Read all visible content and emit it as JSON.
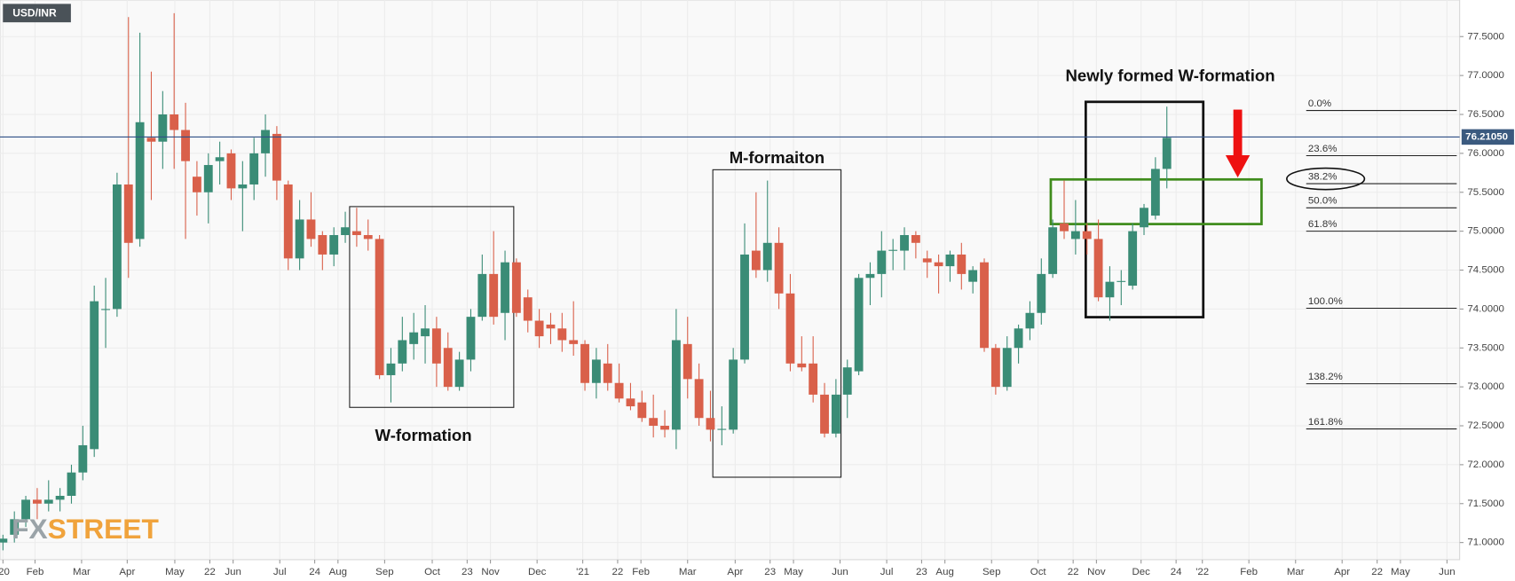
{
  "chart_data": {
    "type": "candlestick",
    "title": "USD/INR",
    "logo": [
      "FX",
      "STREET"
    ],
    "up_color": "#3a8c76",
    "down_color": "#d9604a",
    "ylim": [
      70.78,
      77.97
    ],
    "yticks": [
      {
        "value": 71,
        "label": "71.0000"
      },
      {
        "value": 71.5,
        "label": "71.5000"
      },
      {
        "value": 72,
        "label": "72.0000"
      },
      {
        "value": 72.5,
        "label": "72.5000"
      },
      {
        "value": 73,
        "label": "73.0000"
      },
      {
        "value": 73.5,
        "label": "73.5000"
      },
      {
        "value": 74,
        "label": "74.0000"
      },
      {
        "value": 74.5,
        "label": "74.5000"
      },
      {
        "value": 75,
        "label": "75.0000"
      },
      {
        "value": 75.5,
        "label": "75.5000"
      },
      {
        "value": 76,
        "label": "76.0000"
      },
      {
        "value": 76.5,
        "label": "76.5000"
      },
      {
        "value": 77,
        "label": "77.0000"
      },
      {
        "value": 77.5,
        "label": "77.5000"
      }
    ],
    "xlim": [
      -0.26,
      127.66
    ],
    "xticks": [
      {
        "value": 0,
        "label": "'20"
      },
      {
        "value": 2.81,
        "label": "Feb"
      },
      {
        "value": 6.89,
        "label": "Mar"
      },
      {
        "value": 10.89,
        "label": "Apr"
      },
      {
        "value": 15.06,
        "label": "May"
      },
      {
        "value": 18.13,
        "label": "22"
      },
      {
        "value": 20.17,
        "label": "Jun"
      },
      {
        "value": 24.26,
        "label": "Jul"
      },
      {
        "value": 27.32,
        "label": "24"
      },
      {
        "value": 29.36,
        "label": "Aug"
      },
      {
        "value": 33.45,
        "label": "Sep"
      },
      {
        "value": 37.62,
        "label": "Oct"
      },
      {
        "value": 40.68,
        "label": "23"
      },
      {
        "value": 42.72,
        "label": "Nov"
      },
      {
        "value": 46.81,
        "label": "Dec"
      },
      {
        "value": 50.81,
        "label": "'21"
      },
      {
        "value": 53.87,
        "label": "22"
      },
      {
        "value": 55.91,
        "label": "Feb"
      },
      {
        "value": 60.0,
        "label": "Mar"
      },
      {
        "value": 64.17,
        "label": "Apr"
      },
      {
        "value": 67.23,
        "label": "23"
      },
      {
        "value": 69.28,
        "label": "May"
      },
      {
        "value": 73.36,
        "label": "Jun"
      },
      {
        "value": 77.45,
        "label": "Jul"
      },
      {
        "value": 80.51,
        "label": "23"
      },
      {
        "value": 82.55,
        "label": "Aug"
      },
      {
        "value": 86.64,
        "label": "Sep"
      },
      {
        "value": 90.72,
        "label": "Oct"
      },
      {
        "value": 93.79,
        "label": "22"
      },
      {
        "value": 95.83,
        "label": "Nov"
      },
      {
        "value": 99.74,
        "label": "Dec"
      },
      {
        "value": 102.81,
        "label": "24"
      },
      {
        "value": 105.11,
        "label": "'22"
      },
      {
        "value": 109.19,
        "label": "Feb"
      },
      {
        "value": 113.28,
        "label": "Mar"
      },
      {
        "value": 117.36,
        "label": "Apr"
      },
      {
        "value": 120.43,
        "label": "22"
      },
      {
        "value": 122.47,
        "label": "May"
      },
      {
        "value": 126.55,
        "label": "Jun"
      }
    ],
    "current_price": {
      "value": 76.2105,
      "label": "76.21050"
    },
    "fib_levels": [
      {
        "label": "0.0%",
        "price": 76.55
      },
      {
        "label": "23.6%",
        "price": 75.97
      },
      {
        "label": "38.2%",
        "price": 75.61
      },
      {
        "label": "50.0%",
        "price": 75.3
      },
      {
        "label": "61.8%",
        "price": 75.0
      },
      {
        "label": "100.0%",
        "price": 74.01
      },
      {
        "label": "138.2%",
        "price": 73.04
      },
      {
        "label": "161.8%",
        "price": 72.46
      }
    ],
    "annotations": [
      "W-formation",
      "M-formaiton",
      "Newly formed W-formation"
    ],
    "ohlc": [
      [
        71.0,
        71.1,
        70.9,
        71.05
      ],
      [
        71.1,
        71.4,
        71.0,
        71.3
      ],
      [
        71.3,
        71.6,
        71.2,
        71.55
      ],
      [
        71.55,
        71.7,
        71.3,
        71.5
      ],
      [
        71.5,
        71.8,
        71.4,
        71.55
      ],
      [
        71.55,
        71.7,
        71.4,
        71.6
      ],
      [
        71.6,
        72.0,
        71.5,
        71.9
      ],
      [
        71.9,
        72.5,
        71.8,
        72.25
      ],
      [
        72.2,
        74.3,
        72.1,
        74.1
      ],
      [
        74.0,
        74.4,
        73.5,
        74.0
      ],
      [
        74.0,
        75.75,
        73.9,
        75.6
      ],
      [
        75.6,
        77.75,
        74.4,
        74.85
      ],
      [
        74.9,
        77.55,
        74.8,
        76.4
      ],
      [
        76.2,
        77.05,
        75.4,
        76.15
      ],
      [
        76.15,
        76.8,
        75.8,
        76.5
      ],
      [
        76.5,
        77.8,
        75.8,
        76.3
      ],
      [
        76.3,
        76.65,
        74.9,
        75.9
      ],
      [
        75.7,
        75.9,
        75.2,
        75.5
      ],
      [
        75.5,
        76.0,
        75.1,
        75.85
      ],
      [
        75.9,
        76.15,
        75.6,
        75.95
      ],
      [
        76.0,
        76.05,
        75.4,
        75.55
      ],
      [
        75.55,
        75.9,
        75.0,
        75.6
      ],
      [
        75.6,
        76.2,
        75.4,
        76.0
      ],
      [
        76.0,
        76.5,
        75.7,
        76.3
      ],
      [
        76.25,
        76.35,
        75.4,
        75.65
      ],
      [
        75.6,
        75.65,
        74.5,
        74.65
      ],
      [
        74.65,
        75.4,
        74.5,
        75.15
      ],
      [
        75.15,
        75.5,
        74.8,
        74.9
      ],
      [
        74.95,
        75.0,
        74.5,
        74.7
      ],
      [
        74.7,
        75.05,
        74.55,
        74.95
      ],
      [
        74.95,
        75.25,
        74.85,
        75.05
      ],
      [
        75.0,
        75.3,
        74.8,
        74.95
      ],
      [
        74.95,
        75.15,
        74.75,
        74.9
      ],
      [
        74.9,
        74.95,
        73.1,
        73.15
      ],
      [
        73.15,
        73.5,
        72.8,
        73.3
      ],
      [
        73.3,
        73.9,
        73.2,
        73.6
      ],
      [
        73.55,
        73.95,
        73.35,
        73.7
      ],
      [
        73.65,
        74.05,
        73.3,
        73.75
      ],
      [
        73.75,
        73.9,
        73.0,
        73.3
      ],
      [
        73.5,
        73.7,
        72.95,
        73.0
      ],
      [
        73.0,
        73.45,
        72.95,
        73.35
      ],
      [
        73.35,
        74.0,
        73.2,
        73.9
      ],
      [
        73.9,
        74.7,
        73.85,
        74.45
      ],
      [
        74.45,
        75.0,
        73.8,
        73.9
      ],
      [
        73.95,
        74.75,
        73.6,
        74.6
      ],
      [
        74.6,
        74.65,
        73.9,
        73.95
      ],
      [
        74.15,
        74.25,
        73.7,
        73.85
      ],
      [
        73.85,
        74.0,
        73.5,
        73.65
      ],
      [
        73.8,
        73.95,
        73.55,
        73.75
      ],
      [
        73.75,
        73.95,
        73.45,
        73.6
      ],
      [
        73.6,
        74.1,
        73.4,
        73.55
      ],
      [
        73.55,
        73.6,
        72.95,
        73.05
      ],
      [
        73.05,
        73.5,
        72.85,
        73.35
      ],
      [
        73.3,
        73.55,
        72.95,
        73.05
      ],
      [
        73.05,
        73.3,
        72.8,
        72.85
      ],
      [
        72.85,
        73.05,
        72.7,
        72.75
      ],
      [
        72.8,
        72.95,
        72.55,
        72.6
      ],
      [
        72.6,
        72.9,
        72.35,
        72.5
      ],
      [
        72.5,
        72.7,
        72.35,
        72.45
      ],
      [
        72.45,
        74.0,
        72.2,
        73.6
      ],
      [
        73.55,
        73.9,
        72.85,
        73.1
      ],
      [
        73.1,
        73.3,
        72.5,
        72.6
      ],
      [
        72.6,
        72.95,
        72.3,
        72.45
      ],
      [
        72.45,
        72.75,
        72.25,
        72.46
      ],
      [
        72.45,
        73.5,
        72.4,
        73.35
      ],
      [
        73.35,
        75.1,
        73.3,
        74.7
      ],
      [
        74.75,
        75.5,
        74.4,
        74.5
      ],
      [
        74.5,
        75.65,
        74.35,
        74.85
      ],
      [
        74.85,
        75.05,
        74.0,
        74.2
      ],
      [
        74.2,
        74.45,
        73.2,
        73.3
      ],
      [
        73.3,
        73.65,
        73.2,
        73.25
      ],
      [
        73.3,
        73.65,
        72.8,
        72.9
      ],
      [
        72.9,
        73.05,
        72.35,
        72.4
      ],
      [
        72.4,
        73.1,
        72.35,
        72.9
      ],
      [
        72.9,
        73.35,
        72.6,
        73.25
      ],
      [
        73.2,
        74.45,
        73.15,
        74.4
      ],
      [
        74.4,
        74.6,
        74.05,
        74.45
      ],
      [
        74.45,
        75.0,
        74.15,
        74.75
      ],
      [
        74.75,
        74.9,
        74.5,
        74.76
      ],
      [
        74.75,
        75.05,
        74.5,
        74.95
      ],
      [
        74.95,
        75.0,
        74.65,
        74.85
      ],
      [
        74.65,
        74.75,
        74.4,
        74.6
      ],
      [
        74.6,
        74.7,
        74.2,
        74.55
      ],
      [
        74.55,
        74.75,
        74.35,
        74.7
      ],
      [
        74.7,
        74.85,
        74.25,
        74.45
      ],
      [
        74.35,
        74.55,
        74.2,
        74.5
      ],
      [
        74.6,
        74.65,
        73.45,
        73.5
      ],
      [
        73.5,
        73.55,
        72.9,
        73.0
      ],
      [
        73.0,
        73.65,
        72.95,
        73.5
      ],
      [
        73.5,
        73.8,
        73.3,
        73.75
      ],
      [
        73.75,
        74.1,
        73.6,
        73.95
      ],
      [
        73.95,
        74.65,
        73.8,
        74.45
      ],
      [
        74.45,
        75.15,
        74.4,
        75.05
      ],
      [
        75.1,
        75.65,
        74.9,
        75.0
      ],
      [
        74.9,
        75.4,
        74.7,
        75.0
      ],
      [
        75.0,
        75.1,
        74.7,
        74.9
      ],
      [
        74.9,
        75.15,
        74.1,
        74.15
      ],
      [
        74.15,
        74.55,
        73.85,
        74.35
      ],
      [
        74.35,
        74.5,
        74.05,
        74.36
      ],
      [
        74.3,
        75.1,
        74.25,
        75.0
      ],
      [
        75.05,
        75.35,
        74.95,
        75.3
      ],
      [
        75.2,
        75.95,
        75.15,
        75.8
      ],
      [
        75.8,
        76.6,
        75.55,
        76.2
      ]
    ]
  }
}
